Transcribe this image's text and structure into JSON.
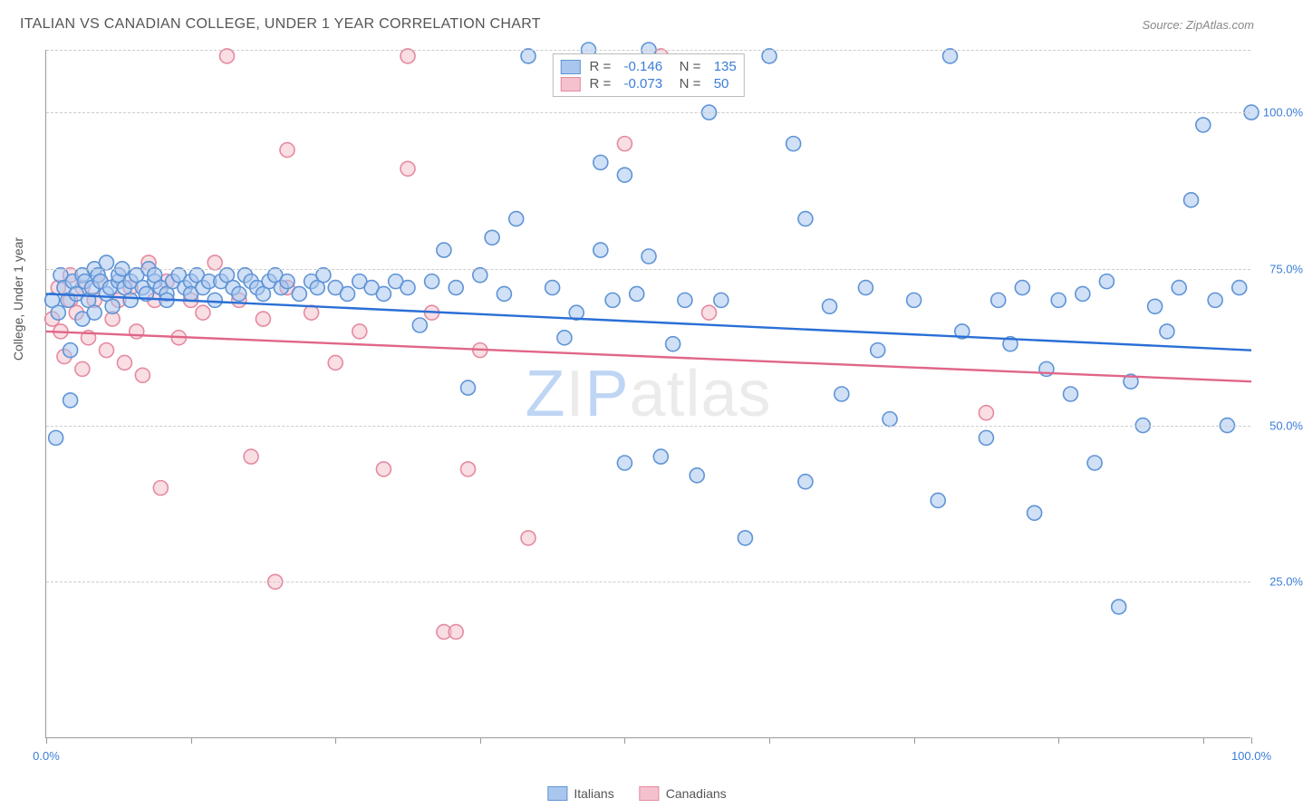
{
  "title": "ITALIAN VS CANADIAN COLLEGE, UNDER 1 YEAR CORRELATION CHART",
  "source": "Source: ZipAtlas.com",
  "y_axis_label": "College, Under 1 year",
  "watermark": {
    "z": "Z",
    "i": "I",
    "p": "P",
    "rest": "atlas"
  },
  "chart": {
    "type": "scatter-with-regression",
    "xlim": [
      0,
      100
    ],
    "ylim": [
      0,
      110
    ],
    "x_ticks": [
      0,
      12,
      24,
      36,
      48,
      60,
      72,
      84,
      96,
      100
    ],
    "x_tick_labels": {
      "0": "0.0%",
      "100": "100.0%"
    },
    "x_tick_label_color": "#3b7dd8",
    "y_gridlines": [
      25,
      50,
      75,
      100,
      110
    ],
    "y_tick_labels": {
      "25": "25.0%",
      "50": "50.0%",
      "75": "75.0%",
      "100": "100.0%"
    },
    "y_tick_label_color": "#3b7dd8",
    "grid_color": "#cccccc",
    "background_color": "#ffffff",
    "marker_radius": 8,
    "marker_stroke_width": 1.6,
    "regression_stroke_width": 2.4,
    "series": [
      {
        "name": "Italians",
        "fill": "#a9c7ee",
        "stroke": "#5f94d6",
        "line_color": "#2a6fd6",
        "R": "-0.146",
        "N": "135",
        "regression": {
          "y_at_x0": 71,
          "y_at_x100": 62
        },
        "points": [
          [
            0.5,
            70
          ],
          [
            0.8,
            48
          ],
          [
            1,
            68
          ],
          [
            1.2,
            74
          ],
          [
            1.5,
            72
          ],
          [
            1.8,
            70
          ],
          [
            2,
            54
          ],
          [
            2,
            62
          ],
          [
            2.2,
            73
          ],
          [
            2.5,
            71
          ],
          [
            3,
            67
          ],
          [
            3,
            74
          ],
          [
            3.2,
            73
          ],
          [
            3.5,
            70
          ],
          [
            3.8,
            72
          ],
          [
            4,
            75
          ],
          [
            4,
            68
          ],
          [
            4.3,
            74
          ],
          [
            4.5,
            73
          ],
          [
            5,
            71
          ],
          [
            5,
            76
          ],
          [
            5.3,
            72
          ],
          [
            5.5,
            69
          ],
          [
            6,
            73
          ],
          [
            6,
            74
          ],
          [
            6.3,
            75
          ],
          [
            6.5,
            72
          ],
          [
            7,
            70
          ],
          [
            7,
            73
          ],
          [
            7.5,
            74
          ],
          [
            8,
            72
          ],
          [
            8.3,
            71
          ],
          [
            8.5,
            75
          ],
          [
            9,
            73
          ],
          [
            9,
            74
          ],
          [
            9.5,
            72
          ],
          [
            10,
            71
          ],
          [
            10,
            70
          ],
          [
            10.5,
            73
          ],
          [
            11,
            74
          ],
          [
            11.5,
            72
          ],
          [
            12,
            73
          ],
          [
            12,
            71
          ],
          [
            12.5,
            74
          ],
          [
            13,
            72
          ],
          [
            13.5,
            73
          ],
          [
            14,
            70
          ],
          [
            14.5,
            73
          ],
          [
            15,
            74
          ],
          [
            15.5,
            72
          ],
          [
            16,
            71
          ],
          [
            16.5,
            74
          ],
          [
            17,
            73
          ],
          [
            17.5,
            72
          ],
          [
            18,
            71
          ],
          [
            18.5,
            73
          ],
          [
            19,
            74
          ],
          [
            19.5,
            72
          ],
          [
            20,
            73
          ],
          [
            21,
            71
          ],
          [
            22,
            73
          ],
          [
            22.5,
            72
          ],
          [
            23,
            74
          ],
          [
            24,
            72
          ],
          [
            25,
            71
          ],
          [
            26,
            73
          ],
          [
            27,
            72
          ],
          [
            28,
            71
          ],
          [
            29,
            73
          ],
          [
            30,
            72
          ],
          [
            31,
            66
          ],
          [
            32,
            73
          ],
          [
            33,
            78
          ],
          [
            34,
            72
          ],
          [
            35,
            56
          ],
          [
            36,
            74
          ],
          [
            37,
            80
          ],
          [
            38,
            71
          ],
          [
            39,
            83
          ],
          [
            40,
            109
          ],
          [
            42,
            72
          ],
          [
            43,
            64
          ],
          [
            44,
            68
          ],
          [
            45,
            110
          ],
          [
            46,
            92
          ],
          [
            46,
            78
          ],
          [
            47,
            70
          ],
          [
            48,
            90
          ],
          [
            48,
            44
          ],
          [
            49,
            71
          ],
          [
            50,
            110
          ],
          [
            50,
            77
          ],
          [
            51,
            45
          ],
          [
            52,
            63
          ],
          [
            53,
            70
          ],
          [
            54,
            42
          ],
          [
            55,
            100
          ],
          [
            56,
            70
          ],
          [
            58,
            32
          ],
          [
            60,
            109
          ],
          [
            62,
            95
          ],
          [
            63,
            83
          ],
          [
            63,
            41
          ],
          [
            65,
            69
          ],
          [
            66,
            55
          ],
          [
            68,
            72
          ],
          [
            69,
            62
          ],
          [
            70,
            51
          ],
          [
            72,
            70
          ],
          [
            74,
            38
          ],
          [
            75,
            109
          ],
          [
            76,
            65
          ],
          [
            78,
            48
          ],
          [
            79,
            70
          ],
          [
            80,
            63
          ],
          [
            81,
            72
          ],
          [
            82,
            36
          ],
          [
            83,
            59
          ],
          [
            84,
            70
          ],
          [
            85,
            55
          ],
          [
            86,
            71
          ],
          [
            87,
            44
          ],
          [
            88,
            73
          ],
          [
            89,
            21
          ],
          [
            90,
            57
          ],
          [
            91,
            50
          ],
          [
            92,
            69
          ],
          [
            93,
            65
          ],
          [
            94,
            72
          ],
          [
            95,
            86
          ],
          [
            96,
            98
          ],
          [
            97,
            70
          ],
          [
            98,
            50
          ],
          [
            99,
            72
          ],
          [
            100,
            100
          ]
        ]
      },
      {
        "name": "Canadians",
        "fill": "#f4c2ce",
        "stroke": "#e58aa0",
        "line_color": "#e06688",
        "R": "-0.073",
        "N": "50",
        "regression": {
          "y_at_x0": 65,
          "y_at_x100": 57
        },
        "points": [
          [
            0.5,
            67
          ],
          [
            1,
            72
          ],
          [
            1.2,
            65
          ],
          [
            1.5,
            61
          ],
          [
            2,
            70
          ],
          [
            2,
            74
          ],
          [
            2.5,
            68
          ],
          [
            3,
            59
          ],
          [
            3,
            72
          ],
          [
            3.5,
            64
          ],
          [
            4,
            70
          ],
          [
            4.5,
            73
          ],
          [
            5,
            62
          ],
          [
            5.5,
            67
          ],
          [
            6,
            70
          ],
          [
            6.5,
            60
          ],
          [
            7,
            72
          ],
          [
            7.5,
            65
          ],
          [
            8,
            58
          ],
          [
            8.5,
            76
          ],
          [
            9,
            70
          ],
          [
            9.5,
            40
          ],
          [
            10,
            73
          ],
          [
            11,
            64
          ],
          [
            12,
            70
          ],
          [
            13,
            68
          ],
          [
            14,
            76
          ],
          [
            15,
            109
          ],
          [
            16,
            70
          ],
          [
            17,
            45
          ],
          [
            18,
            67
          ],
          [
            19,
            25
          ],
          [
            20,
            72
          ],
          [
            20,
            94
          ],
          [
            22,
            68
          ],
          [
            24,
            60
          ],
          [
            26,
            65
          ],
          [
            28,
            43
          ],
          [
            30,
            91
          ],
          [
            30,
            109
          ],
          [
            32,
            68
          ],
          [
            33,
            17
          ],
          [
            34,
            17
          ],
          [
            35,
            43
          ],
          [
            36,
            62
          ],
          [
            40,
            32
          ],
          [
            48,
            95
          ],
          [
            51,
            109
          ],
          [
            55,
            68
          ],
          [
            78,
            52
          ]
        ]
      }
    ]
  },
  "legend_bottom": [
    {
      "label": "Italians",
      "fill": "#a9c7ee",
      "stroke": "#5f94d6"
    },
    {
      "label": "Canadians",
      "fill": "#f4c2ce",
      "stroke": "#e58aa0"
    }
  ]
}
